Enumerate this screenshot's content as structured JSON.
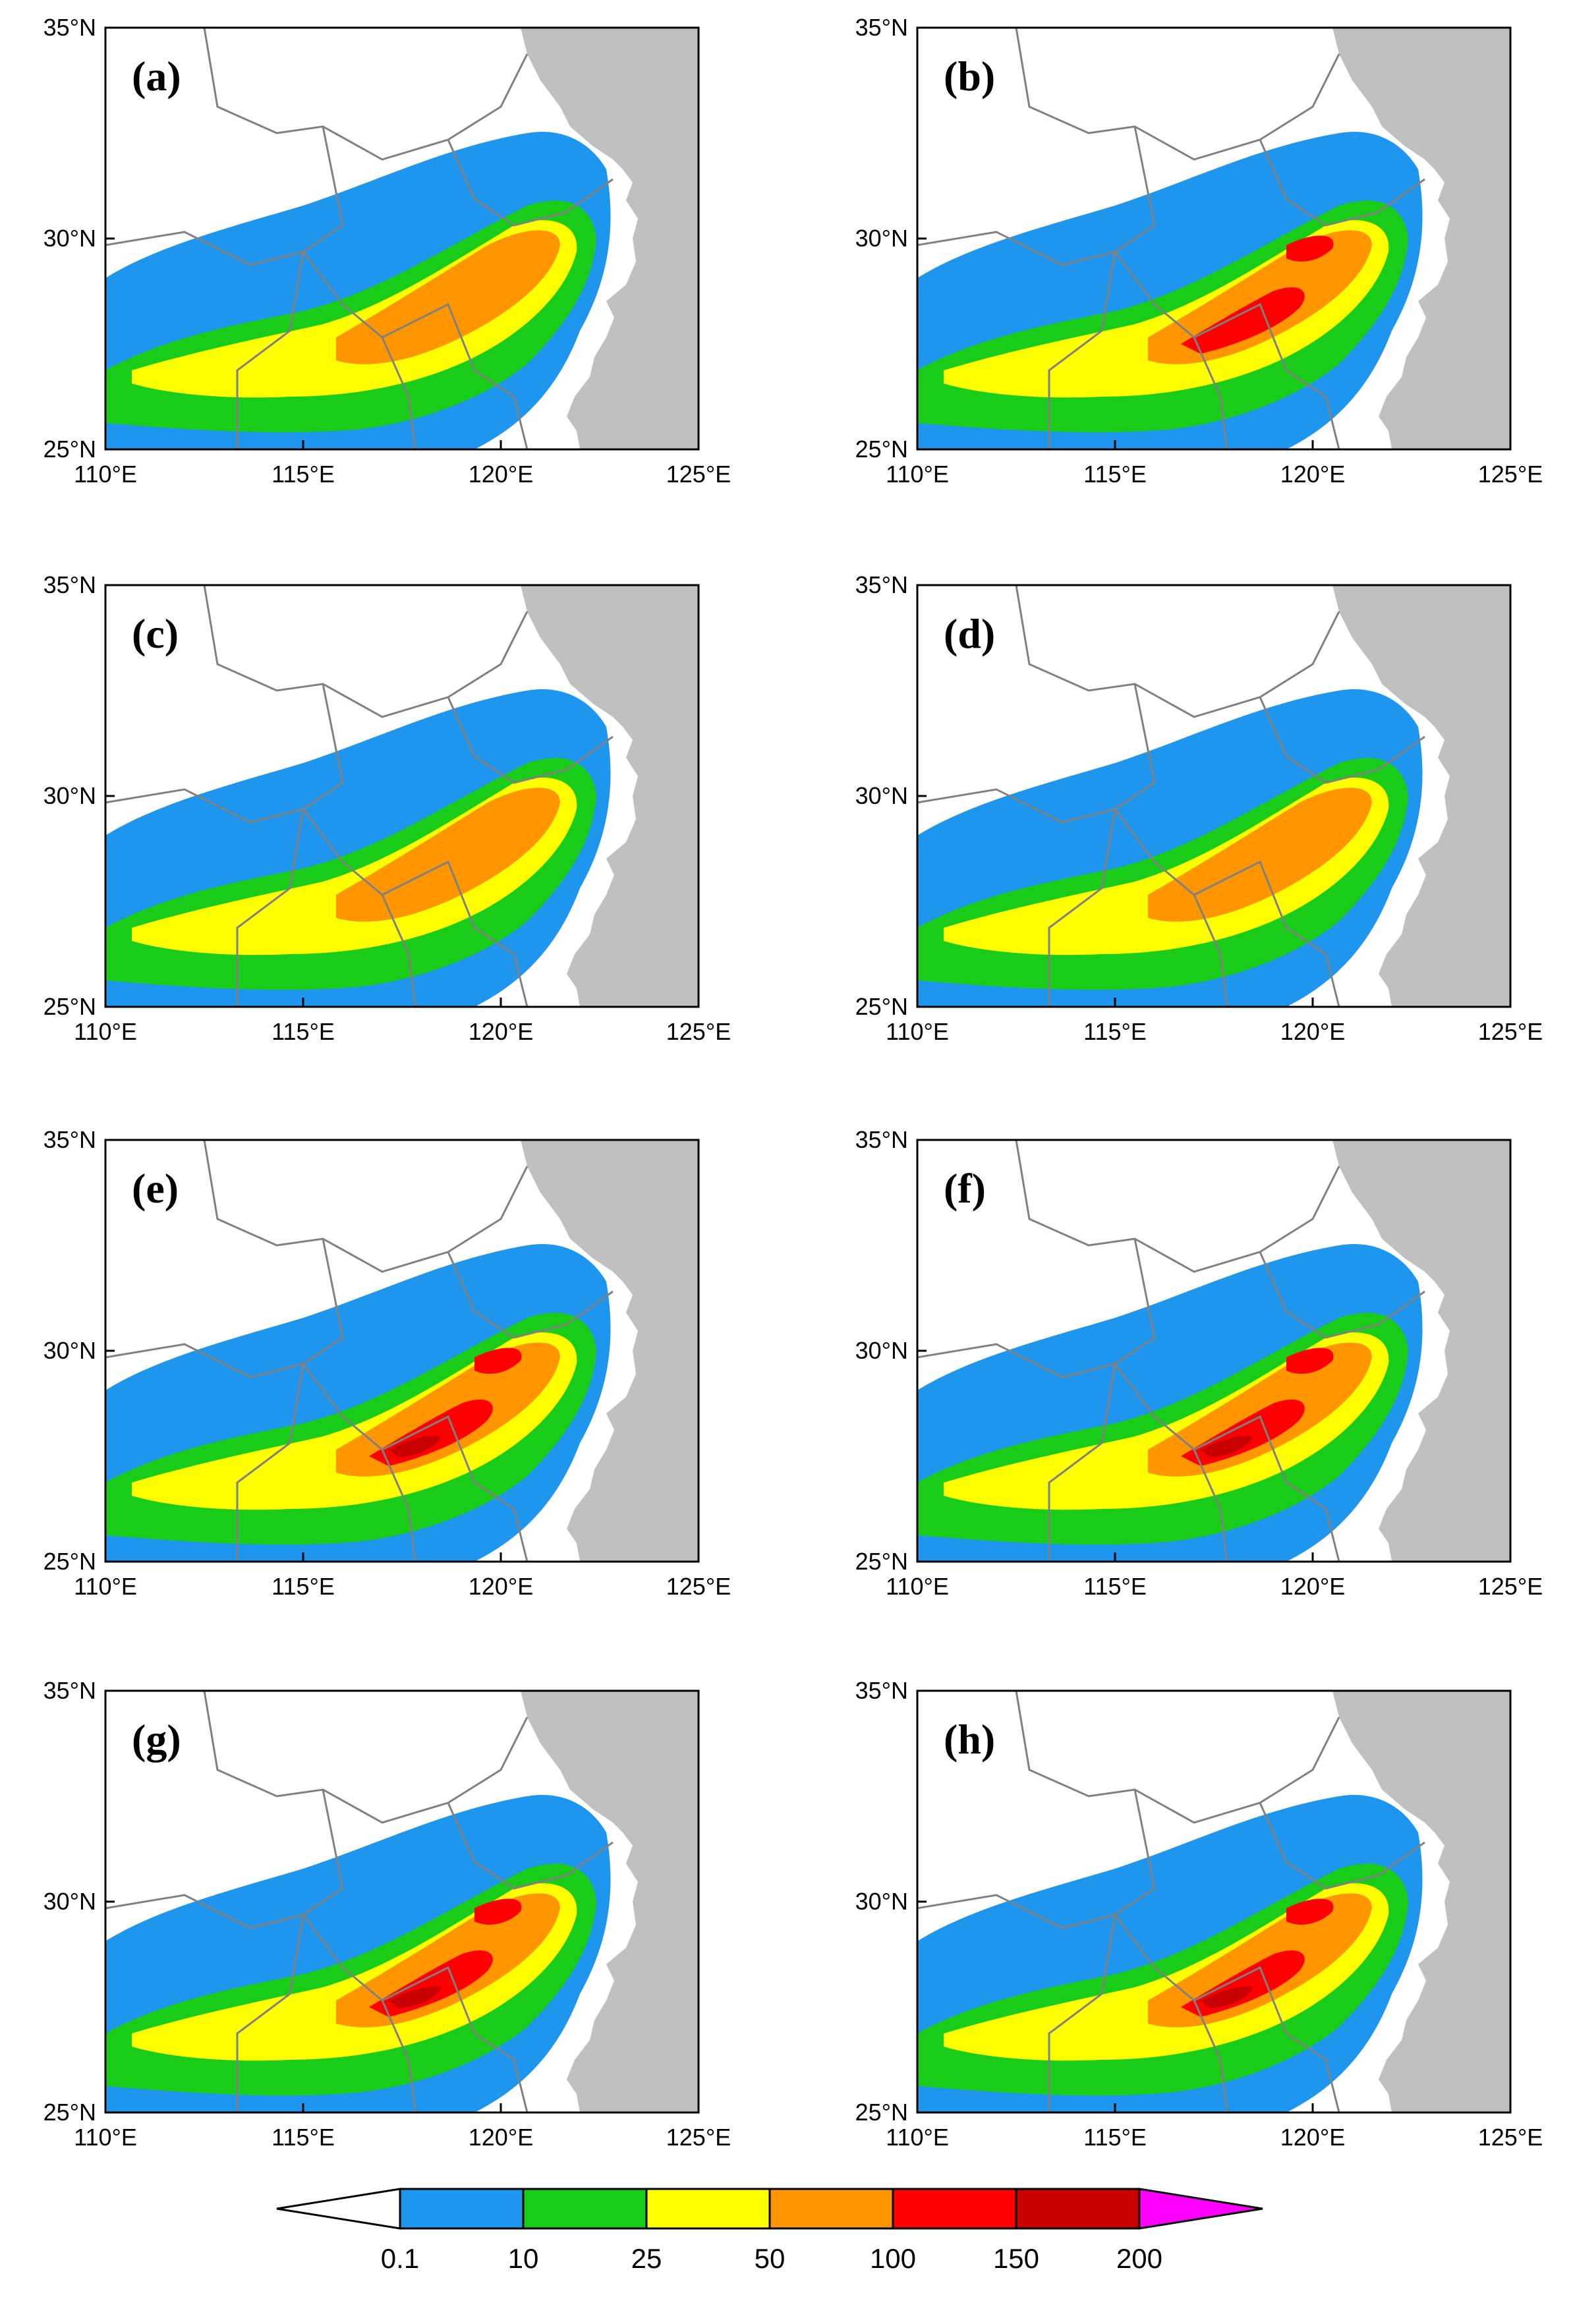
{
  "figure": {
    "panels": [
      {
        "id": "a",
        "label": "(a)"
      },
      {
        "id": "b",
        "label": "(b)"
      },
      {
        "id": "c",
        "label": "(c)"
      },
      {
        "id": "d",
        "label": "(d)"
      },
      {
        "id": "e",
        "label": "(e)"
      },
      {
        "id": "f",
        "label": "(f)"
      },
      {
        "id": "g",
        "label": "(g)"
      },
      {
        "id": "h",
        "label": "(h)"
      }
    ],
    "x_ticks": [
      "110°E",
      "115°E",
      "120°E",
      "125°E"
    ],
    "y_ticks": [
      "35°N",
      "30°N",
      "25°N"
    ],
    "colorbar": {
      "labels": [
        "0.1",
        "10",
        "25",
        "50",
        "100",
        "150",
        "200"
      ],
      "colors": [
        "#ffffff",
        "#1e96ee",
        "#18cc18",
        "#ffff00",
        "#ff9600",
        "#ff0000",
        "#c80000",
        "#ff00ff"
      ]
    },
    "map_colors": {
      "land": "#ffffff",
      "sea": "#c0c0c0",
      "border": "#808080",
      "c10": "#1e96ee",
      "c25": "#18cc18",
      "c50": "#ffff00",
      "c100": "#ff9600",
      "c150": "#ff0000",
      "c200": "#c80000"
    }
  }
}
